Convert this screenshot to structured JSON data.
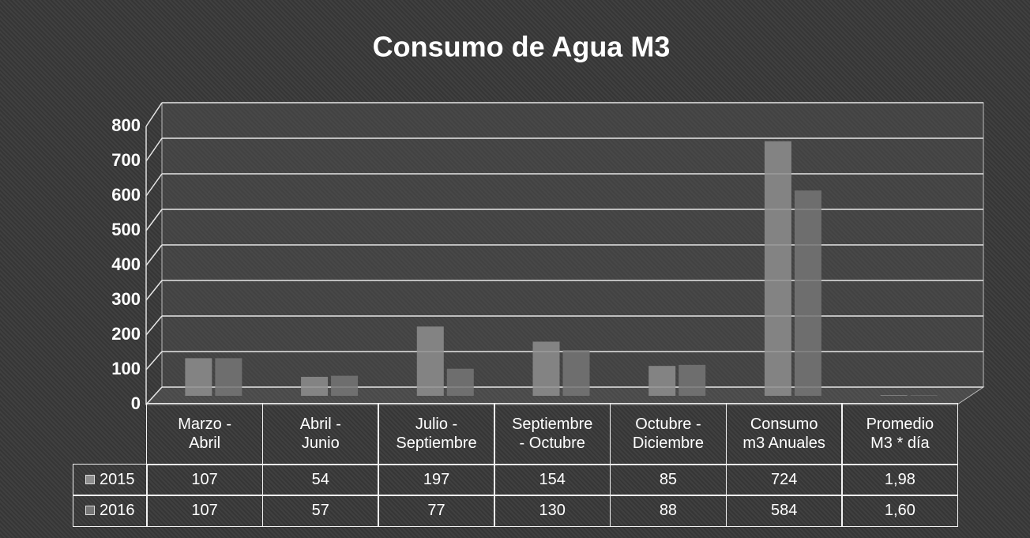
{
  "chart_data": {
    "type": "bar3d",
    "title": "Consumo de Agua M3",
    "categories": [
      "Marzo -\nAbril",
      "Abril -\nJunio",
      "Julio -\nSeptiembre",
      "Septiembre\n- Octubre",
      "Octubre -\nDiciembre",
      "Consumo\nm3 Anuales",
      "Promedio\nM3 * día"
    ],
    "series": [
      {
        "name": "2015",
        "color": "#8e8e8e",
        "values": [
          107,
          54,
          197,
          154,
          85,
          724,
          1.98
        ],
        "value_labels": [
          "107",
          "54",
          "197",
          "154",
          "85",
          "724",
          "1,98"
        ]
      },
      {
        "name": "2016",
        "color": "#767676",
        "values": [
          107,
          57,
          77,
          130,
          88,
          584,
          1.6
        ],
        "value_labels": [
          "107",
          "57",
          "77",
          "130",
          "88",
          "584",
          "1,60"
        ]
      }
    ],
    "ylim": [
      0,
      800
    ],
    "yticks": [
      0,
      100,
      200,
      300,
      400,
      500,
      600,
      700,
      800
    ],
    "grid": true,
    "data_table": true
  }
}
